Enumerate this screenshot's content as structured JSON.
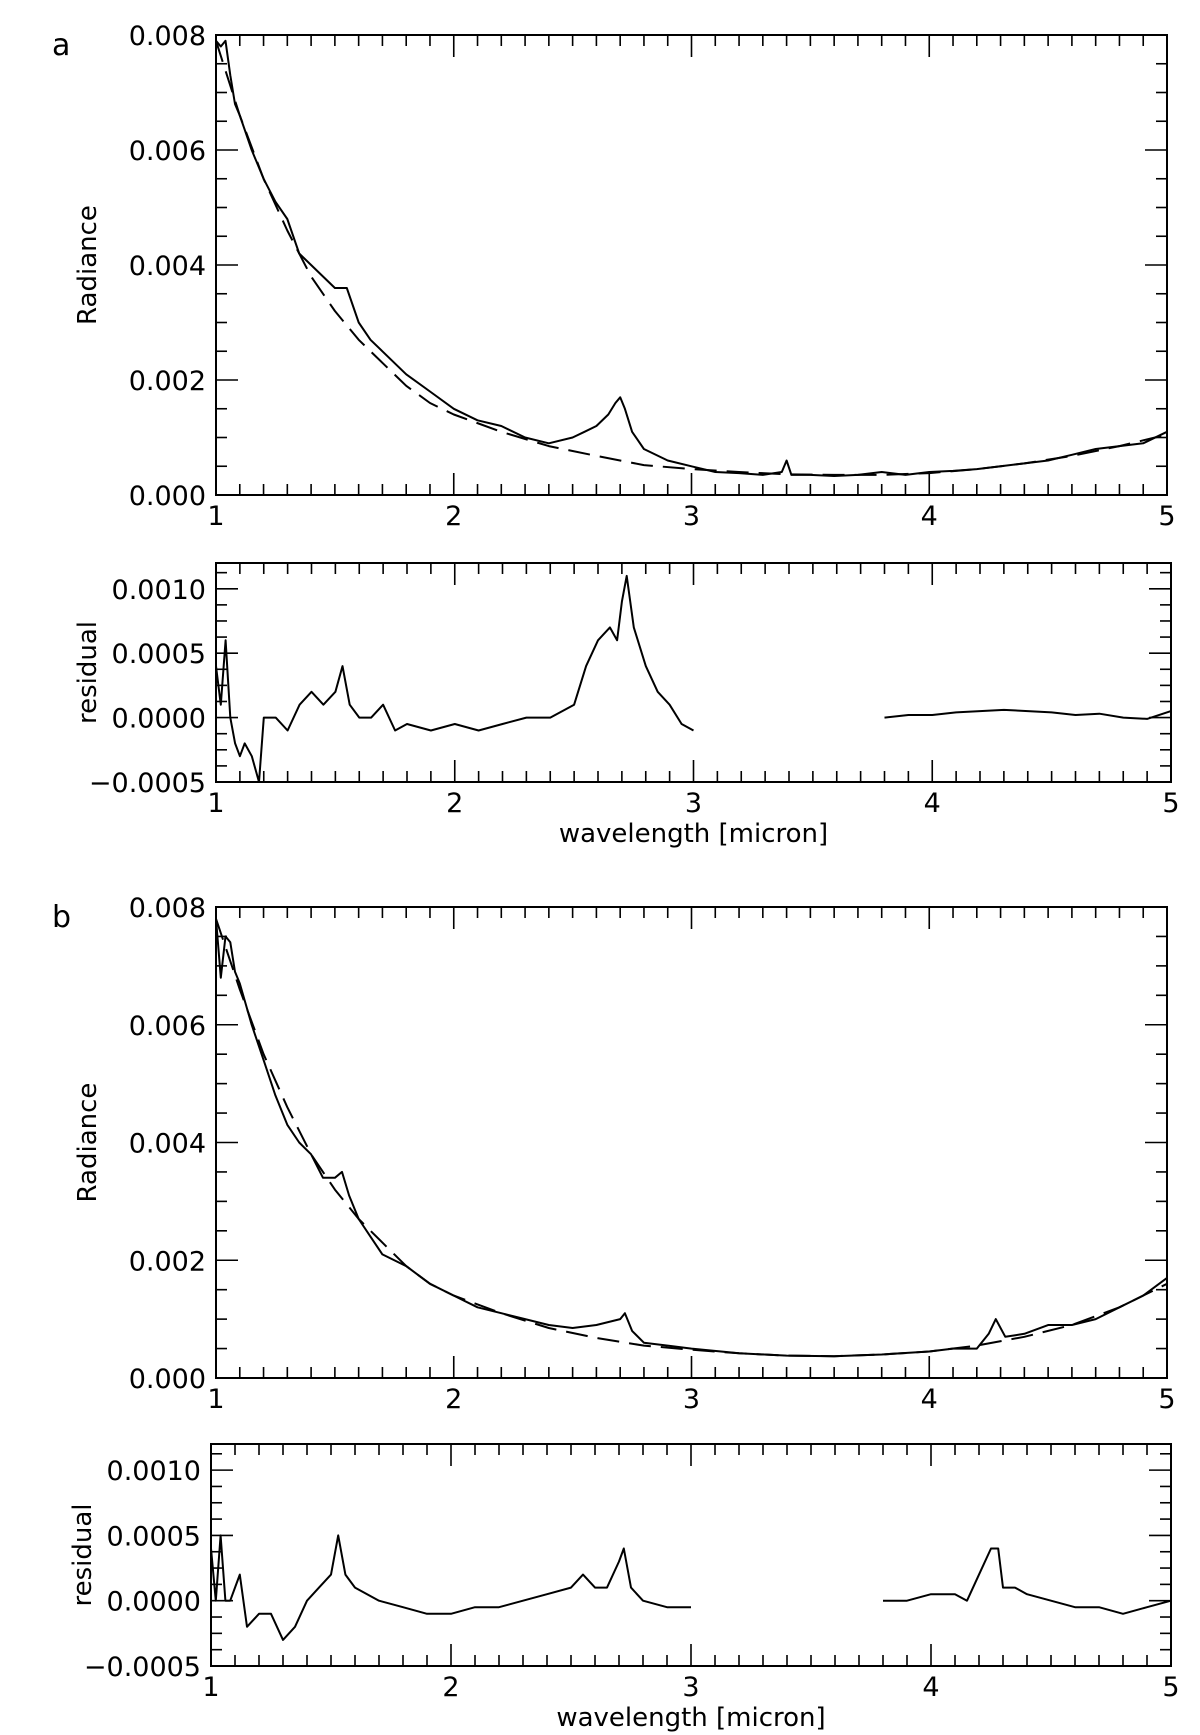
{
  "chart_data": [
    {
      "id": "a-radiance",
      "panel_label": "a",
      "type": "line",
      "xlabel": "",
      "ylabel": "Radiance",
      "xlim": [
        1,
        5
      ],
      "ylim": [
        0.0,
        0.008
      ],
      "x_ticks": [
        "1",
        "2",
        "3",
        "4",
        "5"
      ],
      "y_ticks": [
        "0.000",
        "0.002",
        "0.004",
        "0.006",
        "0.008"
      ],
      "series": [
        {
          "style": "solid",
          "x": [
            1.0,
            1.02,
            1.04,
            1.06,
            1.08,
            1.1,
            1.15,
            1.2,
            1.25,
            1.3,
            1.35,
            1.4,
            1.45,
            1.5,
            1.55,
            1.6,
            1.65,
            1.7,
            1.8,
            1.9,
            2.0,
            2.1,
            2.2,
            2.3,
            2.4,
            2.5,
            2.55,
            2.6,
            2.65,
            2.68,
            2.7,
            2.72,
            2.75,
            2.8,
            2.9,
            3.0,
            3.1,
            3.2,
            3.3,
            3.38,
            3.4,
            3.42,
            3.5,
            3.6,
            3.7,
            3.8,
            3.9,
            4.0,
            4.1,
            4.2,
            4.3,
            4.4,
            4.5,
            4.6,
            4.7,
            4.8,
            4.9,
            5.0
          ],
          "y": [
            0.0079,
            0.0078,
            0.0079,
            0.0073,
            0.0068,
            0.0066,
            0.006,
            0.0055,
            0.0051,
            0.0048,
            0.0042,
            0.004,
            0.0038,
            0.0036,
            0.0036,
            0.003,
            0.0027,
            0.0025,
            0.0021,
            0.0018,
            0.0015,
            0.0013,
            0.0012,
            0.001,
            0.0009,
            0.001,
            0.0011,
            0.0012,
            0.0014,
            0.0016,
            0.0017,
            0.0015,
            0.0011,
            0.0008,
            0.0006,
            0.0005,
            0.0004,
            0.00038,
            0.00035,
            0.0004,
            0.0006,
            0.00035,
            0.00035,
            0.00033,
            0.00035,
            0.0004,
            0.00035,
            0.0004,
            0.00042,
            0.00045,
            0.0005,
            0.00055,
            0.0006,
            0.0007,
            0.0008,
            0.00085,
            0.0009,
            0.0011
          ]
        },
        {
          "style": "dashed",
          "x": [
            1.0,
            1.1,
            1.2,
            1.3,
            1.4,
            1.5,
            1.6,
            1.7,
            1.8,
            1.9,
            2.0,
            2.2,
            2.4,
            2.6,
            2.8,
            3.0,
            3.2,
            3.4,
            3.6,
            3.8,
            4.0,
            4.2,
            4.4,
            4.6,
            4.8,
            5.0
          ],
          "y": [
            0.0079,
            0.0066,
            0.0055,
            0.0046,
            0.0038,
            0.0032,
            0.0027,
            0.0023,
            0.0019,
            0.0016,
            0.0014,
            0.0011,
            0.00085,
            0.00068,
            0.00052,
            0.00045,
            0.0004,
            0.00036,
            0.00035,
            0.00035,
            0.00038,
            0.00045,
            0.00055,
            0.00068,
            0.00085,
            0.00105
          ]
        }
      ]
    },
    {
      "id": "a-residual",
      "type": "line",
      "xlabel": "wavelength [micron]",
      "ylabel": "residual",
      "xlim": [
        1,
        5
      ],
      "ylim": [
        -0.0005,
        0.0012
      ],
      "x_ticks": [
        "1",
        "2",
        "3",
        "4",
        "5"
      ],
      "y_ticks": [
        "−0.0005",
        "0.0000",
        "0.0005",
        "0.0010"
      ],
      "series": [
        {
          "style": "solid",
          "x": [
            1.0,
            1.02,
            1.04,
            1.06,
            1.08,
            1.1,
            1.12,
            1.15,
            1.18,
            1.2,
            1.25,
            1.3,
            1.35,
            1.4,
            1.45,
            1.5,
            1.53,
            1.56,
            1.6,
            1.65,
            1.7,
            1.75,
            1.8,
            1.9,
            2.0,
            2.1,
            2.2,
            2.3,
            2.4,
            2.5,
            2.55,
            2.6,
            2.65,
            2.68,
            2.7,
            2.72,
            2.75,
            2.8,
            2.85,
            2.9,
            2.95,
            3.0
          ],
          "y": [
            0.0004,
            0.0001,
            0.0006,
            0.0,
            -0.0002,
            -0.0003,
            -0.0002,
            -0.0003,
            -0.0005,
            0.0,
            0.0,
            -0.0001,
            0.0001,
            0.0002,
            0.0001,
            0.0002,
            0.0004,
            0.0001,
            0.0,
            0.0,
            0.0001,
            -0.0001,
            -5e-05,
            -0.0001,
            -5e-05,
            -0.0001,
            -5e-05,
            0.0,
            0.0,
            0.0001,
            0.0004,
            0.0006,
            0.0007,
            0.0006,
            0.0009,
            0.0011,
            0.0007,
            0.0004,
            0.0002,
            0.0001,
            -5e-05,
            -0.0001
          ]
        },
        {
          "style": "solid",
          "x": [
            3.8,
            3.9,
            4.0,
            4.1,
            4.2,
            4.3,
            4.4,
            4.5,
            4.6,
            4.7,
            4.8,
            4.9,
            5.0
          ],
          "y": [
            0.0,
            2e-05,
            2e-05,
            4e-05,
            5e-05,
            6e-05,
            5e-05,
            4e-05,
            2e-05,
            3e-05,
            0.0,
            -1e-05,
            5e-05
          ]
        }
      ]
    },
    {
      "id": "b-radiance",
      "panel_label": "b",
      "type": "line",
      "xlabel": "",
      "ylabel": "Radiance",
      "xlim": [
        1,
        5
      ],
      "ylim": [
        0.0,
        0.008
      ],
      "x_ticks": [
        "1",
        "2",
        "3",
        "4",
        "5"
      ],
      "y_ticks": [
        "0.000",
        "0.002",
        "0.004",
        "0.006",
        "0.008"
      ],
      "series": [
        {
          "style": "solid",
          "x": [
            1.0,
            1.02,
            1.04,
            1.06,
            1.08,
            1.1,
            1.15,
            1.2,
            1.25,
            1.3,
            1.35,
            1.4,
            1.45,
            1.5,
            1.53,
            1.56,
            1.6,
            1.65,
            1.7,
            1.8,
            1.9,
            2.0,
            2.1,
            2.2,
            2.3,
            2.4,
            2.5,
            2.6,
            2.7,
            2.72,
            2.75,
            2.8,
            2.9,
            3.0,
            3.2,
            3.4,
            3.6,
            3.8,
            4.0,
            4.1,
            4.2,
            4.25,
            4.28,
            4.32,
            4.4,
            4.5,
            4.6,
            4.7,
            4.8,
            4.9,
            5.0
          ],
          "y": [
            0.0078,
            0.0068,
            0.0075,
            0.0074,
            0.0069,
            0.0067,
            0.006,
            0.0054,
            0.0048,
            0.0043,
            0.004,
            0.0038,
            0.0034,
            0.0034,
            0.0035,
            0.0031,
            0.0027,
            0.0024,
            0.0021,
            0.0019,
            0.0016,
            0.0014,
            0.0012,
            0.0011,
            0.001,
            0.0009,
            0.00085,
            0.0009,
            0.001,
            0.0011,
            0.0008,
            0.0006,
            0.00055,
            0.0005,
            0.00042,
            0.00038,
            0.00037,
            0.0004,
            0.00045,
            0.0005,
            0.0005,
            0.00075,
            0.001,
            0.0007,
            0.00075,
            0.0009,
            0.0009,
            0.001,
            0.0012,
            0.0014,
            0.0017
          ]
        },
        {
          "style": "dashed",
          "x": [
            1.0,
            1.1,
            1.2,
            1.3,
            1.4,
            1.5,
            1.6,
            1.7,
            1.8,
            1.9,
            2.0,
            2.2,
            2.4,
            2.6,
            2.8,
            3.0,
            3.2,
            3.4,
            3.6,
            3.8,
            4.0,
            4.2,
            4.4,
            4.6,
            4.8,
            5.0
          ],
          "y": [
            0.0078,
            0.0066,
            0.0055,
            0.0046,
            0.0038,
            0.0032,
            0.0027,
            0.0023,
            0.0019,
            0.0016,
            0.0014,
            0.0011,
            0.00085,
            0.00068,
            0.00055,
            0.00048,
            0.00042,
            0.00038,
            0.00037,
            0.0004,
            0.00045,
            0.00055,
            0.0007,
            0.0009,
            0.0012,
            0.0016
          ]
        }
      ]
    },
    {
      "id": "b-residual",
      "type": "line",
      "xlabel": "wavelength [micron]",
      "ylabel": "residual",
      "xlim": [
        1,
        5
      ],
      "ylim": [
        -0.0005,
        0.0012
      ],
      "x_ticks": [
        "1",
        "2",
        "3",
        "4",
        "5"
      ],
      "y_ticks": [
        "−0.0005",
        "0.0000",
        "0.0005",
        "0.0010"
      ],
      "series": [
        {
          "style": "solid",
          "x": [
            1.0,
            1.02,
            1.04,
            1.06,
            1.08,
            1.1,
            1.12,
            1.15,
            1.2,
            1.25,
            1.3,
            1.35,
            1.4,
            1.45,
            1.5,
            1.53,
            1.56,
            1.6,
            1.7,
            1.8,
            1.9,
            2.0,
            2.1,
            2.2,
            2.3,
            2.4,
            2.5,
            2.55,
            2.6,
            2.65,
            2.7,
            2.72,
            2.75,
            2.8,
            2.9,
            3.0
          ],
          "y": [
            0.0004,
            0.0,
            0.0005,
            0.0,
            0.0,
            0.0001,
            0.0002,
            -0.0002,
            -0.0001,
            -0.0001,
            -0.0003,
            -0.0002,
            0.0,
            0.0001,
            0.0002,
            0.0005,
            0.0002,
            0.0001,
            0.0,
            -5e-05,
            -0.0001,
            -0.0001,
            -5e-05,
            -5e-05,
            0.0,
            5e-05,
            0.0001,
            0.0002,
            0.0001,
            0.0001,
            0.0003,
            0.0004,
            0.0001,
            0.0,
            -5e-05,
            -5e-05
          ]
        },
        {
          "style": "solid",
          "x": [
            3.8,
            3.9,
            4.0,
            4.1,
            4.15,
            4.2,
            4.25,
            4.28,
            4.3,
            4.35,
            4.4,
            4.5,
            4.6,
            4.7,
            4.8,
            4.9,
            5.0
          ],
          "y": [
            0.0,
            0.0,
            5e-05,
            5e-05,
            0.0,
            0.0002,
            0.0004,
            0.0004,
            0.0001,
            0.0001,
            5e-05,
            0.0,
            -5e-05,
            -5e-05,
            -0.0001,
            -5e-05,
            0.0
          ]
        }
      ]
    }
  ]
}
